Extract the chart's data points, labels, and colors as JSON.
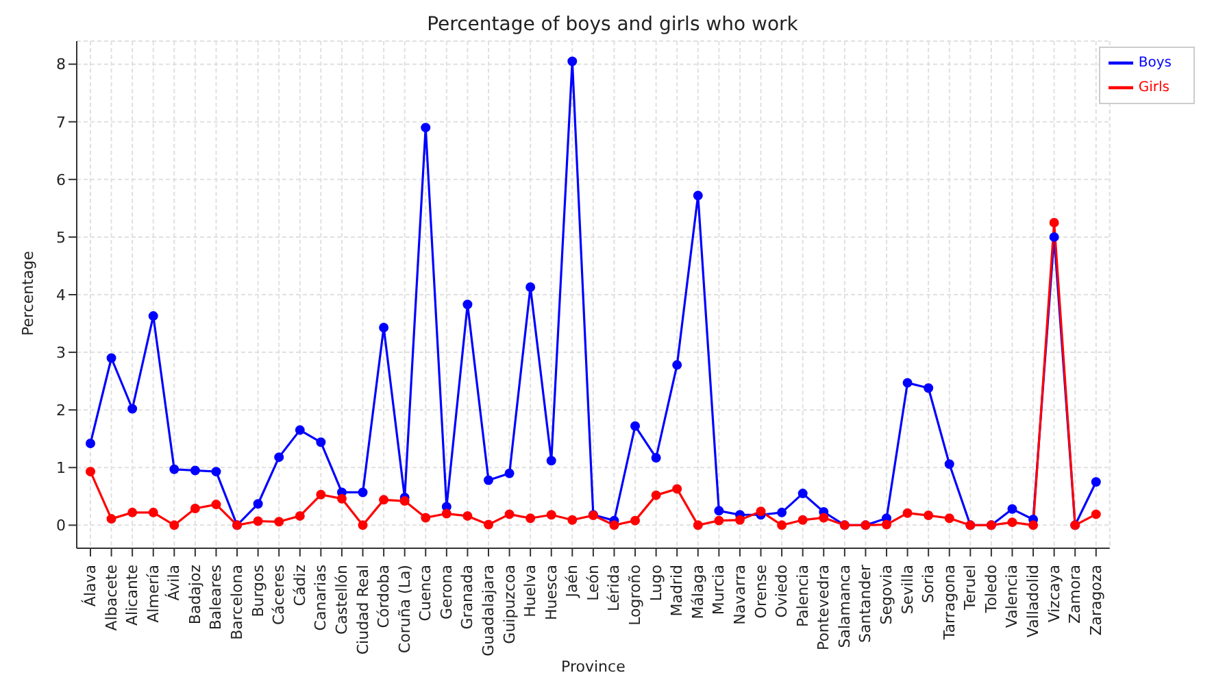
{
  "chart_data": {
    "type": "line",
    "title": "Percentage of boys and girls who work",
    "xlabel": "Province",
    "ylabel": "Percentage",
    "categories": [
      "Álava",
      "Albacete",
      "Alicante",
      "Almería",
      "Ávila",
      "Badajoz",
      "Baleares",
      "Barcelona",
      "Burgos",
      "Cáceres",
      "Cádiz",
      "Canarias",
      "Castellón",
      "Ciudad Real",
      "Córdoba",
      "Coruña (La)",
      "Cuenca",
      "Gerona",
      "Granada",
      "Guadalajara",
      "Guipuzcoa",
      "Huelva",
      "Huesca",
      "Jaén",
      "León",
      "Lérida",
      "Logroño",
      "Lugo",
      "Madrid",
      "Málaga",
      "Murcia",
      "Navarra",
      "Orense",
      "Oviedo",
      "Palencia",
      "Pontevedra",
      "Salamanca",
      "Santander",
      "Segovia",
      "Sevilla",
      "Soria",
      "Tarragona",
      "Teruel",
      "Toledo",
      "Valencia",
      "Valladolid",
      "Vizcaya",
      "Zamora",
      "Zaragoza"
    ],
    "series": [
      {
        "name": "Boys",
        "color": "#0000ff",
        "values": [
          1.42,
          2.9,
          2.02,
          3.63,
          0.97,
          0.95,
          0.93,
          0,
          0.37,
          1.18,
          1.65,
          1.44,
          0.57,
          0.57,
          3.43,
          0.48,
          6.9,
          0.32,
          3.83,
          0.78,
          0.9,
          4.13,
          1.12,
          8.05,
          0.18,
          0.08,
          1.72,
          1.17,
          2.78,
          5.72,
          0.25,
          0.18,
          0.18,
          0.22,
          0.55,
          0.23,
          0,
          0,
          0.12,
          2.47,
          2.38,
          1.06,
          0,
          0,
          0.28,
          0.1,
          5.0,
          0,
          0.75
        ]
      },
      {
        "name": "Girls",
        "color": "#ff0000",
        "values": [
          0.93,
          0.11,
          0.22,
          0.22,
          0,
          0.29,
          0.36,
          0,
          0.07,
          0.06,
          0.16,
          0.53,
          0.46,
          0,
          0.44,
          0.42,
          0.13,
          0.2,
          0.16,
          0.01,
          0.19,
          0.12,
          0.18,
          0.09,
          0.17,
          0,
          0.08,
          0.52,
          0.63,
          0,
          0.08,
          0.09,
          0.24,
          0,
          0.09,
          0.13,
          0,
          0,
          0.01,
          0.21,
          0.17,
          0.12,
          0,
          0,
          0.05,
          0,
          5.25,
          0,
          0.19
        ]
      }
    ],
    "ylim": [
      -0.4,
      8.4
    ],
    "yticks": [
      0,
      1,
      2,
      3,
      4,
      5,
      6,
      7,
      8
    ],
    "grid": true,
    "legend": "top right",
    "marker": "circle",
    "line_style": "solid"
  }
}
